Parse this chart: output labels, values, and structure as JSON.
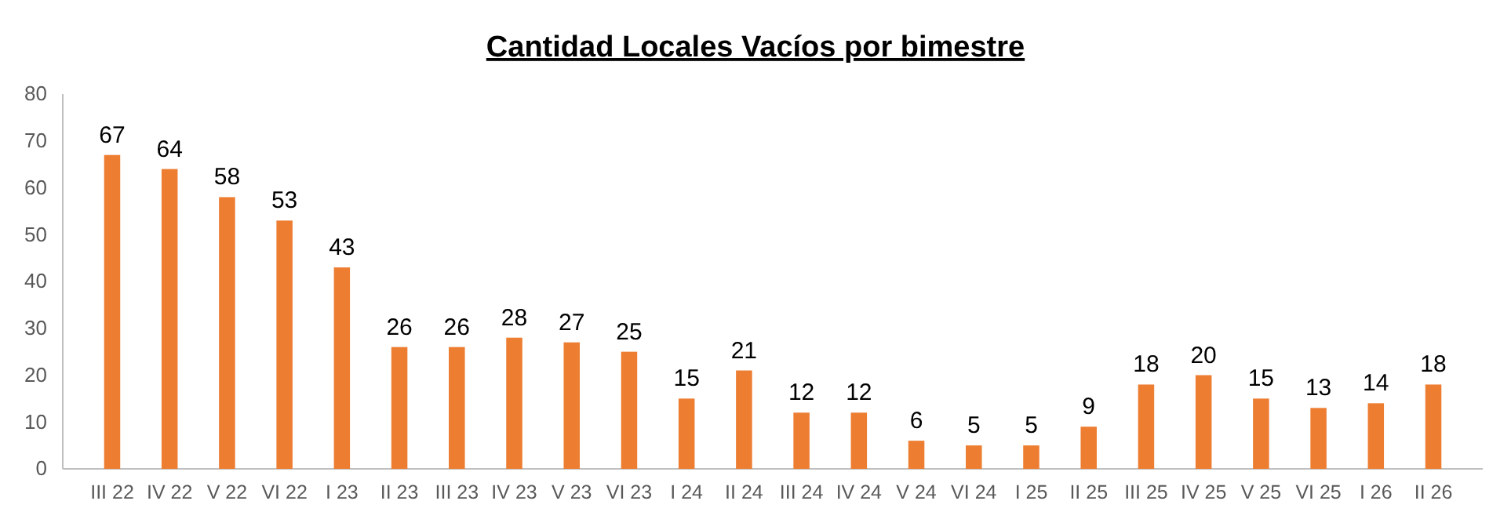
{
  "chart_data": {
    "type": "bar",
    "title": "Cantidad Locales Vacíos por bimestre",
    "categories": [
      "III 22",
      "IV 22",
      "V 22",
      "VI 22",
      "I 23",
      "II 23",
      "III 23",
      "IV 23",
      "V 23",
      "VI 23",
      "I 24",
      "II 24",
      "III 24",
      "IV 24",
      "V 24",
      "VI 24",
      "I 25",
      "II 25",
      "III 25",
      "IV 25",
      "V 25",
      "VI 25",
      "I 26",
      "II 26"
    ],
    "values": [
      67,
      64,
      58,
      53,
      43,
      26,
      26,
      28,
      27,
      25,
      15,
      21,
      12,
      12,
      6,
      5,
      5,
      9,
      18,
      20,
      15,
      13,
      14,
      18
    ],
    "color": "#ed7d31",
    "ylim": [
      0,
      80
    ],
    "yticks": [
      0,
      10,
      20,
      30,
      40,
      50,
      60,
      70,
      80
    ],
    "grid": false,
    "data_labels": true
  }
}
